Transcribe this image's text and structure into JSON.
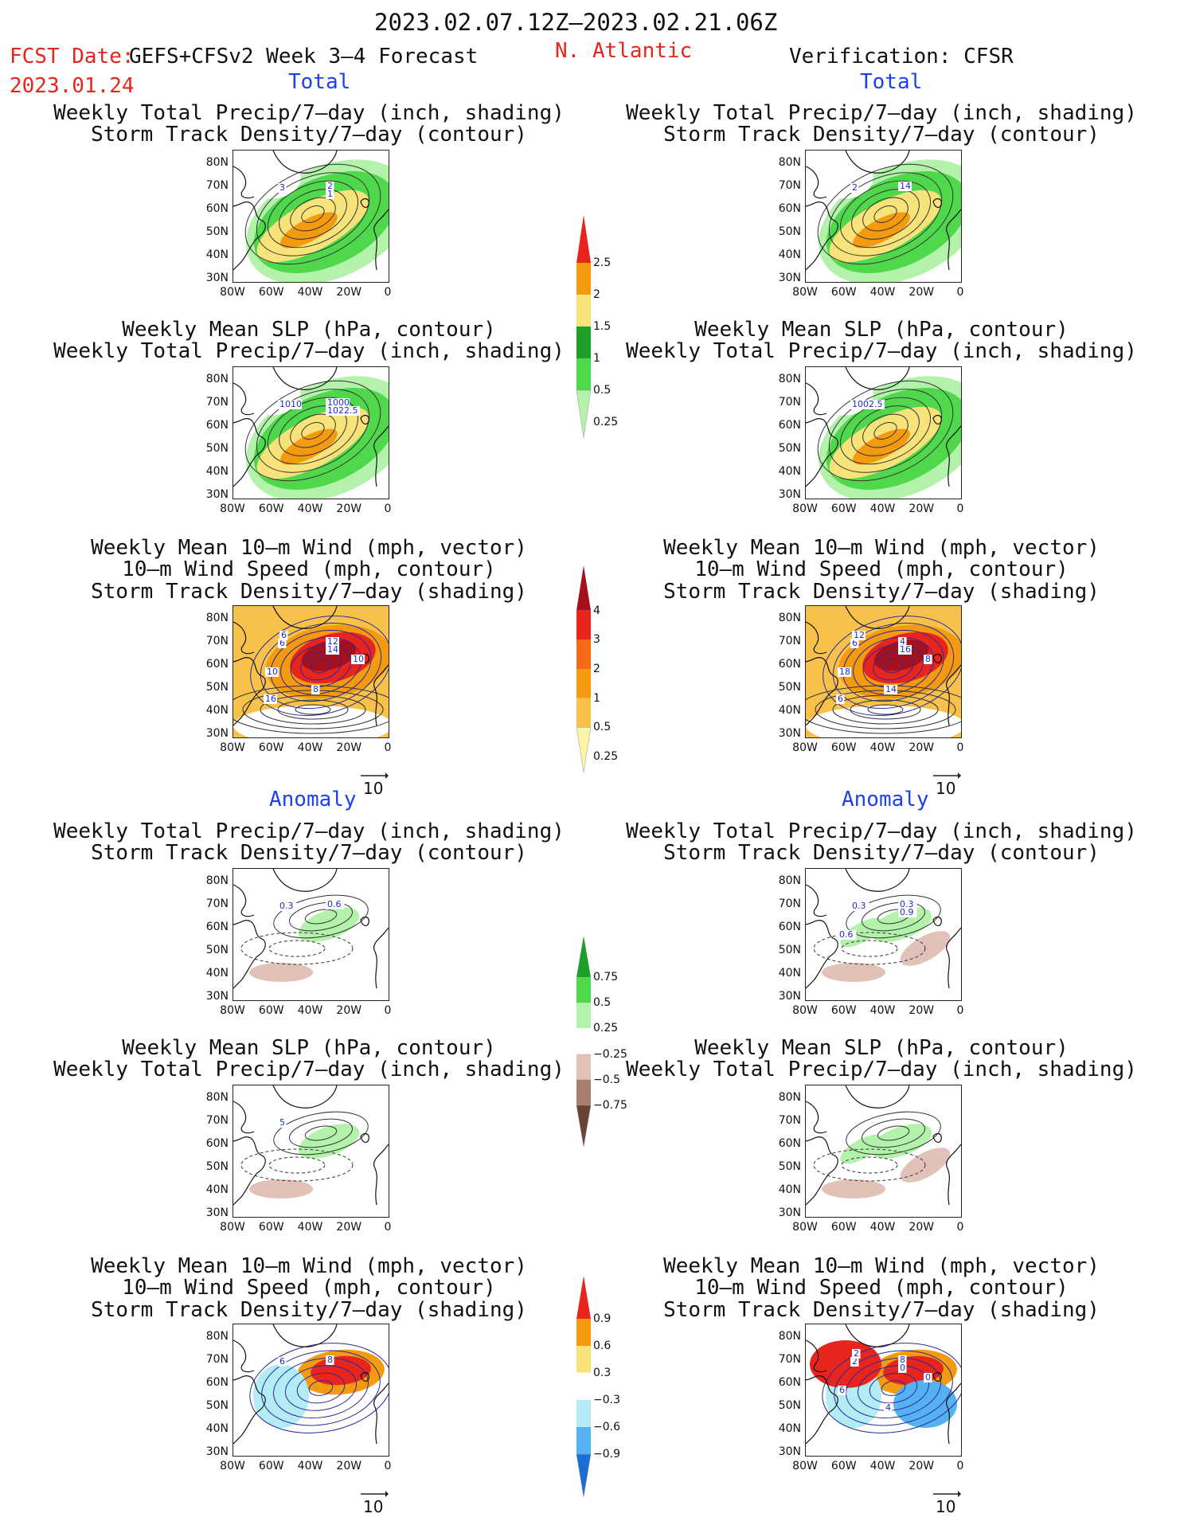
{
  "header": {
    "period": "2023.02.07.12Z–2023.02.21.06Z",
    "fcst_label": "FCST Date:",
    "fcst_date": "2023.01.24",
    "model": "GEFS+CFSv2 Week 3–4 Forecast",
    "region": "N. Atlantic",
    "verification": "Verification: CFSR",
    "total_label": "Total",
    "anomaly_label": "Anomaly"
  },
  "titles": {
    "precip_track": "Weekly Total Precip/7–day (inch, shading)\nStorm Track Density/7–day (contour)",
    "slp_precip": "Weekly Mean SLP (hPa, contour)\nWeekly Total Precip/7–day (inch, shading)",
    "wind_track": "Weekly Mean 10–m Wind (mph, vector)\n10–m Wind Speed (mph, contour)\nStorm Track Density/7–day (shading)"
  },
  "axes": {
    "lat_ticks": [
      "80N",
      "70N",
      "60N",
      "50N",
      "40N",
      "30N"
    ],
    "lon_ticks": [
      "80W",
      "60W",
      "40W",
      "20W",
      "0"
    ]
  },
  "vector_ref": "10",
  "colorbars": {
    "precip_total": {
      "levels": [
        "2.5",
        "2",
        "1.5",
        "1",
        "0.5",
        "0.25"
      ],
      "colors": [
        "#e8251d",
        "#f49a0f",
        "#f8e27a",
        "#1f9e2a",
        "#4fd84c",
        "#b3f2aa"
      ]
    },
    "track_total": {
      "levels": [
        "4",
        "3",
        "2",
        "1",
        "0.5",
        "0.25"
      ],
      "colors": [
        "#a4111c",
        "#e8251d",
        "#f46a15",
        "#f49a0f",
        "#f8c24a",
        "#fcf5a8"
      ]
    },
    "precip_anom": {
      "levels": [
        "0.75",
        "0.5",
        "0.25",
        "−0.25",
        "−0.5",
        "−0.75"
      ],
      "colors": [
        "#1f9e2a",
        "#4fd84c",
        "#b3f2aa",
        "#ffffff",
        "#e2c2b8",
        "#a87f6e",
        "#6b4336"
      ]
    },
    "track_anom": {
      "levels": [
        "0.9",
        "0.6",
        "0.3",
        "−0.3",
        "−0.6",
        "−0.9"
      ],
      "colors": [
        "#e8251d",
        "#f49a0f",
        "#f8e27a",
        "#ffffff",
        "#b3ecf5",
        "#56b1f0",
        "#1a6fd6"
      ]
    }
  },
  "chart_data": [
    {
      "type": "heatmap",
      "id": "fc-total-precip",
      "contour_labels": [
        "3",
        "2",
        "1"
      ]
    },
    {
      "type": "heatmap",
      "id": "fc-total-slp",
      "contour_labels": [
        "1010",
        "1000",
        "1022.5"
      ]
    },
    {
      "type": "heatmap",
      "id": "fc-total-wind",
      "contour_labels": [
        "6",
        "12",
        "14",
        "10",
        "8",
        "6",
        "10",
        "16"
      ]
    },
    {
      "type": "heatmap",
      "id": "obs-total-precip",
      "contour_labels": [
        "2",
        "14"
      ]
    },
    {
      "type": "heatmap",
      "id": "obs-total-slp",
      "contour_labels": [
        "1002.5"
      ]
    },
    {
      "type": "heatmap",
      "id": "obs-total-wind",
      "contour_labels": [
        "6",
        "4",
        "16",
        "18",
        "14",
        "12",
        "8",
        "6"
      ]
    },
    {
      "type": "heatmap",
      "id": "fc-anom-precip",
      "contour_labels": [
        "0.3",
        "0.6"
      ]
    },
    {
      "type": "heatmap",
      "id": "fc-anom-slp",
      "contour_labels": [
        "5"
      ]
    },
    {
      "type": "heatmap",
      "id": "fc-anom-wind",
      "contour_labels": [
        "6",
        "8"
      ]
    },
    {
      "type": "heatmap",
      "id": "obs-anom-precip",
      "contour_labels": [
        "0.3",
        "0.3",
        "0.9",
        "0.6"
      ]
    },
    {
      "type": "heatmap",
      "id": "obs-anom-slp",
      "contour_labels": []
    },
    {
      "type": "heatmap",
      "id": "obs-anom-wind",
      "contour_labels": [
        "2",
        "8",
        "0",
        "6",
        "4",
        "2",
        "0"
      ]
    }
  ]
}
